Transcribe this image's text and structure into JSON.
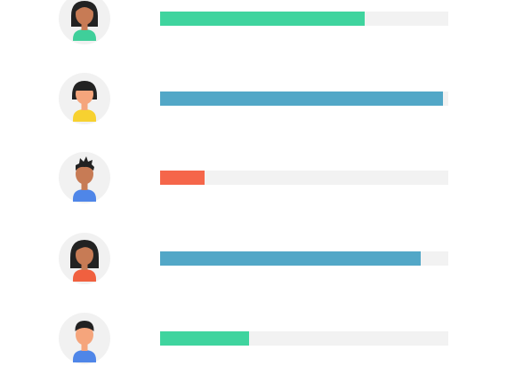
{
  "colors": {
    "background": "#ffffff",
    "avatar_circle": "#f1f1f1",
    "track": "#f2f2f2",
    "hair": "#222222",
    "skin_light": "#f5a57c",
    "skin_dark": "#c77b55",
    "green": "#3fd49e",
    "blue": "#52a7c7",
    "red": "#f5664a",
    "yellow": "#f7d130",
    "shirt_blue": "#4f86e8",
    "shirt_green": "#3fcf9a",
    "shirt_red": "#f0603f"
  },
  "rows": [
    {
      "avatar_icon": "woman-avatar-icon",
      "hair_style": "long",
      "skin_color": "#c77b55",
      "shirt_color": "#3fcf9a",
      "progress": 0.71,
      "bar_color": "#3fd49e"
    },
    {
      "avatar_icon": "woman-avatar-icon",
      "hair_style": "bob",
      "skin_color": "#f5a57c",
      "shirt_color": "#f7d130",
      "progress": 0.98,
      "bar_color": "#52a7c7"
    },
    {
      "avatar_icon": "man-avatar-icon",
      "hair_style": "spiky",
      "skin_color": "#c77b55",
      "shirt_color": "#4f86e8",
      "progress": 0.155,
      "bar_color": "#f5664a"
    },
    {
      "avatar_icon": "woman-avatar-icon",
      "hair_style": "long",
      "skin_color": "#c77b55",
      "shirt_color": "#f0603f",
      "progress": 0.905,
      "bar_color": "#52a7c7"
    },
    {
      "avatar_icon": "man-avatar-icon",
      "hair_style": "short",
      "skin_color": "#f5a57c",
      "shirt_color": "#4f86e8",
      "progress": 0.31,
      "bar_color": "#3fd49e"
    }
  ]
}
